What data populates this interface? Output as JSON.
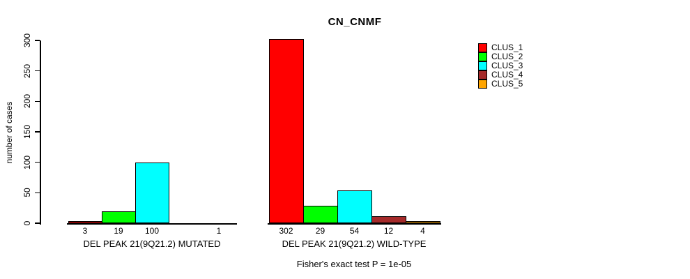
{
  "chart_data": {
    "type": "bar",
    "title": "CN_CNMF",
    "ylabel": "number of cases",
    "ylim": [
      0,
      300
    ],
    "yticks": [
      "0",
      "50",
      "100",
      "150",
      "200",
      "250",
      "300"
    ],
    "grid": false,
    "legend_position": "right",
    "legend": [
      {
        "label": "CLUS_1",
        "color": "#FF0000"
      },
      {
        "label": "CLUS_2",
        "color": "#00FF00"
      },
      {
        "label": "CLUS_3",
        "color": "#00FFFF"
      },
      {
        "label": "CLUS_4",
        "color": "#A52A2A"
      },
      {
        "label": "CLUS_5",
        "color": "#FFA500"
      }
    ],
    "groups": [
      {
        "label": "DEL PEAK 21(9Q21.2) MUTATED",
        "values": [
          3,
          19,
          100,
          0,
          1
        ],
        "value_labels": [
          "3",
          "19",
          "100",
          "",
          "1"
        ]
      },
      {
        "label": "DEL PEAK 21(9Q21.2) WILD-TYPE",
        "values": [
          302,
          29,
          54,
          12,
          4
        ],
        "value_labels": [
          "302",
          "29",
          "54",
          "12",
          "4"
        ]
      }
    ],
    "annotation": "Fisher's exact test P = 1e-05"
  }
}
